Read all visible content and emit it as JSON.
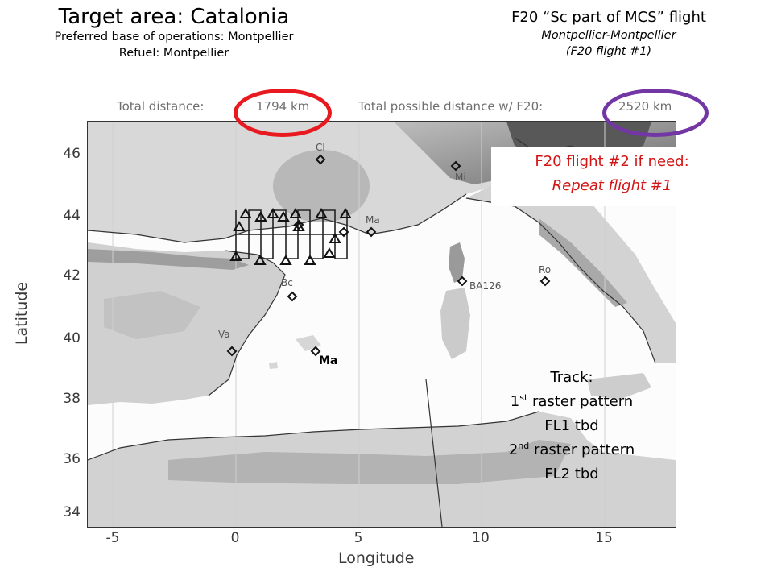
{
  "header_left": {
    "title": "Target area: Catalonia",
    "base": "Preferred base of operations: Montpellier",
    "refuel": "Refuel: Montpellier"
  },
  "header_right": {
    "flight_title": "F20 “Sc part of MCS” flight",
    "route": "Montpellier-Montpellier",
    "flight_number": "(F20 flight #1)"
  },
  "distances": {
    "total_label": "Total distance:",
    "total_value": "1794 km",
    "possible_label": "Total possible distance w/ F20:",
    "possible_value": "2520 km"
  },
  "note": {
    "line1": "F20 flight #2 if need:",
    "line2": "Repeat flight #1"
  },
  "track": {
    "heading": "Track:",
    "raster1_num": "1",
    "raster1_sup": "st",
    "raster1_text": " raster pattern",
    "fl1": "FL1 tbd",
    "raster2_num": "2",
    "raster2_sup": "nd",
    "raster2_text": " raster pattern",
    "fl2": "FL2 tbd"
  },
  "ma_label": "Ma",
  "axes": {
    "xlabel": "Longitude",
    "ylabel": "Latitude",
    "xticks": [
      "-5",
      "0",
      "5",
      "10",
      "15"
    ],
    "yticks": [
      "46",
      "44",
      "42",
      "40",
      "38",
      "36",
      "34"
    ]
  },
  "map_labels": {
    "cl": "Cl",
    "mi": "Mi",
    "ma_marseille": "Ma",
    "ro": "Ro",
    "ba126": "BA126",
    "bc": "Bc",
    "va": "Va"
  },
  "colors": {
    "ring_red": "#e8191f",
    "ring_purple": "#7236a5",
    "note_red": "#d41414"
  }
}
